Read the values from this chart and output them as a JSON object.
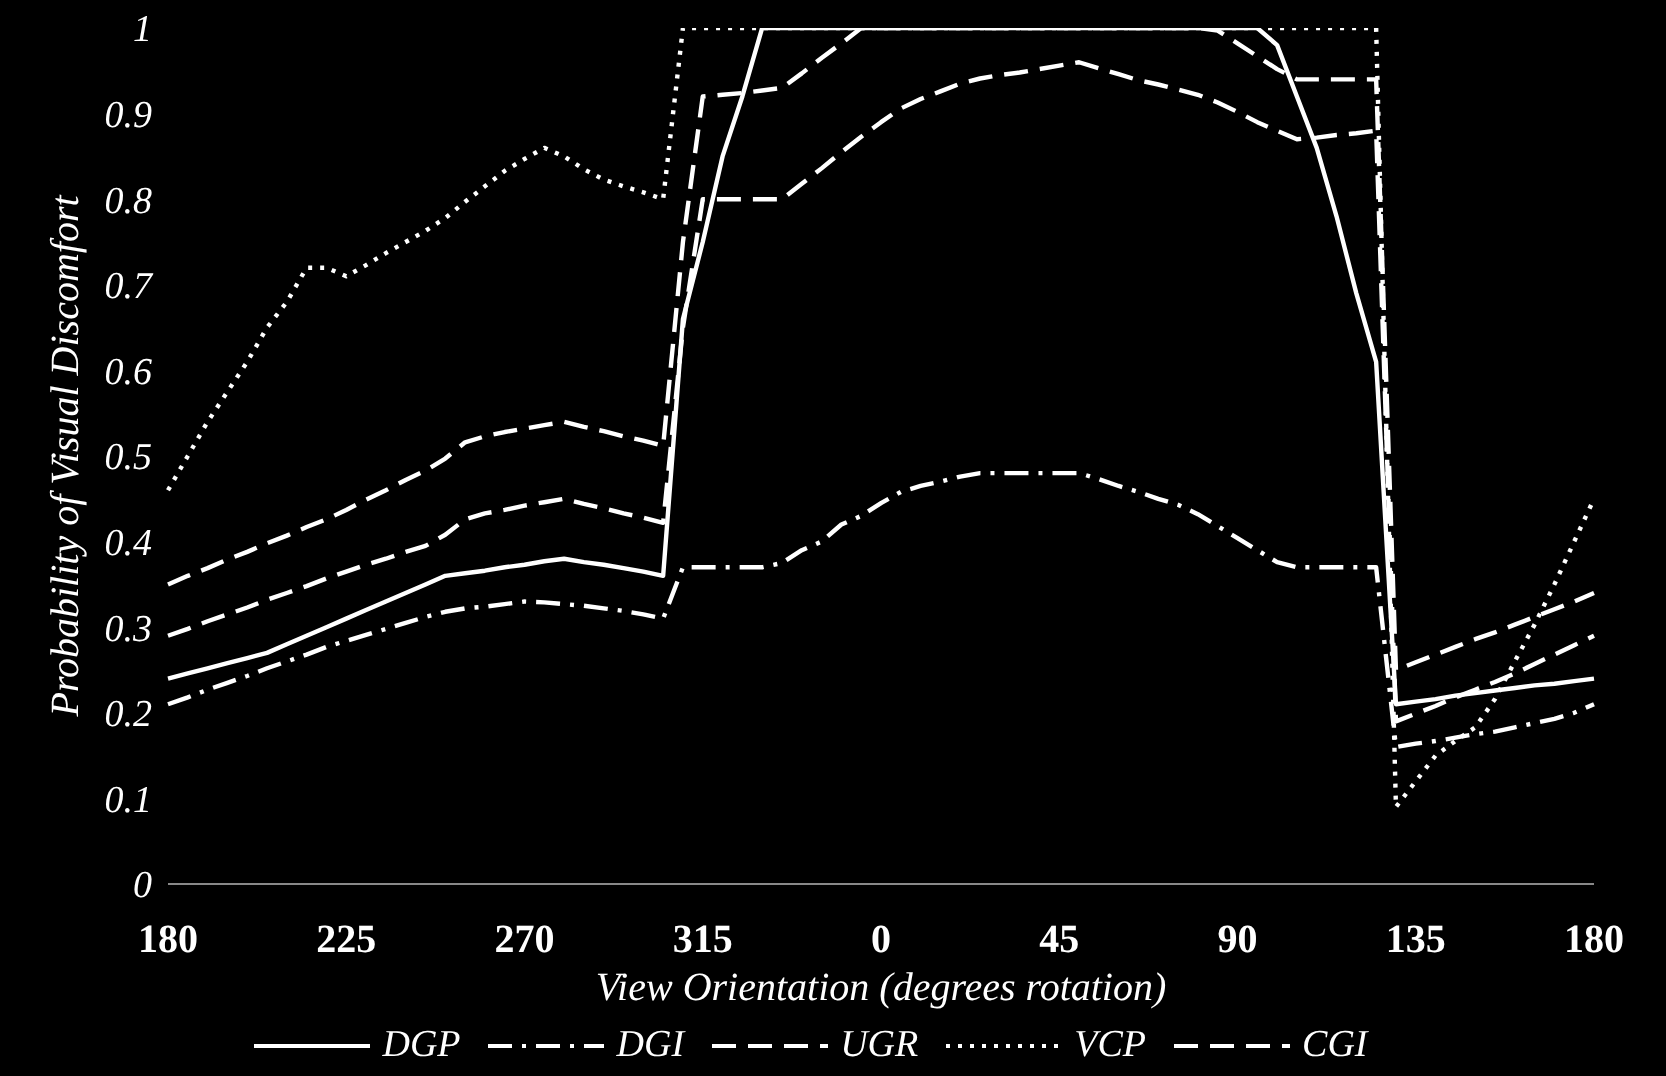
{
  "chart_data": {
    "type": "line",
    "xlabel": "View Orientation (degrees  rotation)",
    "ylabel": "Probability  of  Visual Discomfort",
    "categories": [
      "180",
      null,
      null,
      null,
      null,
      null,
      null,
      null,
      null,
      "225",
      null,
      null,
      null,
      null,
      null,
      null,
      null,
      null,
      "270",
      null,
      null,
      null,
      null,
      null,
      null,
      null,
      null,
      "315",
      null,
      null,
      null,
      null,
      null,
      null,
      null,
      null,
      "0",
      null,
      null,
      null,
      null,
      null,
      null,
      null,
      null,
      "45",
      null,
      null,
      null,
      null,
      null,
      null,
      null,
      null,
      "90",
      null,
      null,
      null,
      null,
      null,
      null,
      null,
      null,
      "135",
      null,
      null,
      null,
      null,
      null,
      null,
      null,
      null,
      "180"
    ],
    "ylim": [
      0,
      1
    ],
    "yticks": [
      0,
      0.1,
      0.2,
      0.3,
      0.4,
      0.5,
      0.6,
      0.7,
      0.8,
      0.9,
      1
    ],
    "grid": false,
    "legend": "bottom",
    "marker": "none",
    "series": [
      {
        "name": "DGP",
        "color": "#ffffff",
        "line_style": "solid",
        "values": [
          0.24,
          0.246,
          0.252,
          0.258,
          0.264,
          0.27,
          0.28,
          0.29,
          0.3,
          0.31,
          0.32,
          0.33,
          0.34,
          0.35,
          0.36,
          0.363,
          0.366,
          0.37,
          0.373,
          0.377,
          0.38,
          0.376,
          0.373,
          0.369,
          0.365,
          0.36,
          0.66,
          0.75,
          0.85,
          0.92,
          1,
          1,
          1,
          1,
          1,
          1,
          1,
          1,
          1,
          1,
          1,
          1,
          1,
          1,
          1,
          1,
          1,
          1,
          1,
          1,
          1,
          1,
          1,
          1,
          1,
          1,
          0.98,
          0.92,
          0.86,
          0.78,
          0.69,
          0.61,
          0.21,
          0.213,
          0.216,
          0.22,
          0.223,
          0.226,
          0.229,
          0.232,
          0.234,
          0.237,
          0.24
        ]
      },
      {
        "name": "DGI",
        "color": "#ffffff",
        "line_style": "dashdot",
        "values": [
          0.21,
          0.218,
          0.227,
          0.235,
          0.243,
          0.252,
          0.26,
          0.268,
          0.277,
          0.284,
          0.291,
          0.298,
          0.305,
          0.312,
          0.318,
          0.322,
          0.324,
          0.327,
          0.33,
          0.329,
          0.327,
          0.325,
          0.322,
          0.319,
          0.315,
          0.31,
          0.37,
          0.37,
          0.37,
          0.37,
          0.37,
          0.375,
          0.39,
          0.4,
          0.42,
          0.43,
          0.445,
          0.458,
          0.465,
          0.47,
          0.476,
          0.48,
          0.48,
          0.48,
          0.48,
          0.48,
          0.48,
          0.473,
          0.465,
          0.458,
          0.45,
          0.443,
          0.432,
          0.418,
          0.404,
          0.39,
          0.376,
          0.37,
          0.37,
          0.37,
          0.37,
          0.37,
          0.16,
          0.164,
          0.167,
          0.171,
          0.175,
          0.178,
          0.183,
          0.188,
          0.193,
          0.2,
          0.21
        ]
      },
      {
        "name": "UGR",
        "color": "#ffffff",
        "line_style": "dashed",
        "values": [
          0.29,
          0.298,
          0.307,
          0.315,
          0.323,
          0.332,
          0.34,
          0.348,
          0.357,
          0.365,
          0.373,
          0.38,
          0.388,
          0.395,
          0.408,
          0.426,
          0.433,
          0.437,
          0.442,
          0.446,
          0.45,
          0.444,
          0.439,
          0.433,
          0.428,
          0.422,
          0.65,
          0.8,
          0.8,
          0.8,
          0.8,
          0.8,
          0.818,
          0.836,
          0.855,
          0.873,
          0.89,
          0.906,
          0.917,
          0.926,
          0.935,
          0.941,
          0.945,
          0.948,
          0.952,
          0.956,
          0.96,
          0.953,
          0.946,
          0.939,
          0.934,
          0.928,
          0.922,
          0.913,
          0.902,
          0.89,
          0.88,
          0.87,
          0.872,
          0.875,
          0.877,
          0.88,
          0.19,
          0.199,
          0.208,
          0.218,
          0.227,
          0.236,
          0.246,
          0.257,
          0.268,
          0.279,
          0.29
        ]
      },
      {
        "name": "VCP",
        "color": "#ffffff",
        "line_style": "dotted",
        "values": [
          0.46,
          0.5,
          0.54,
          0.575,
          0.61,
          0.65,
          0.68,
          0.72,
          0.72,
          0.71,
          0.723,
          0.737,
          0.75,
          0.763,
          0.778,
          0.797,
          0.815,
          0.833,
          0.847,
          0.86,
          0.85,
          0.835,
          0.823,
          0.815,
          0.808,
          0.8,
          1,
          1,
          1,
          1,
          1,
          1,
          1,
          1,
          1,
          1,
          1,
          1,
          1,
          1,
          1,
          1,
          1,
          1,
          1,
          1,
          1,
          1,
          1,
          1,
          1,
          1,
          1,
          1,
          1,
          1,
          1,
          1,
          1,
          1,
          1,
          1,
          0.09,
          0.12,
          0.15,
          0.167,
          0.183,
          0.216,
          0.26,
          0.303,
          0.35,
          0.4,
          0.45
        ]
      },
      {
        "name": "CGI",
        "color": "#ffffff",
        "line_style": "dashed",
        "values": [
          0.35,
          0.36,
          0.369,
          0.379,
          0.388,
          0.398,
          0.407,
          0.417,
          0.426,
          0.437,
          0.449,
          0.46,
          0.472,
          0.483,
          0.497,
          0.516,
          0.523,
          0.528,
          0.532,
          0.536,
          0.54,
          0.534,
          0.529,
          0.523,
          0.518,
          0.512,
          0.75,
          0.92,
          0.922,
          0.924,
          0.927,
          0.93,
          0.947,
          0.965,
          0.982,
          1,
          1,
          1,
          1,
          1,
          1,
          1,
          1,
          1,
          1,
          1,
          1,
          1,
          1,
          1,
          1,
          1,
          1,
          0.997,
          0.982,
          0.967,
          0.952,
          0.94,
          0.94,
          0.94,
          0.94,
          0.94,
          0.25,
          0.259,
          0.268,
          0.277,
          0.286,
          0.294,
          0.303,
          0.312,
          0.321,
          0.33,
          0.34
        ]
      }
    ]
  }
}
